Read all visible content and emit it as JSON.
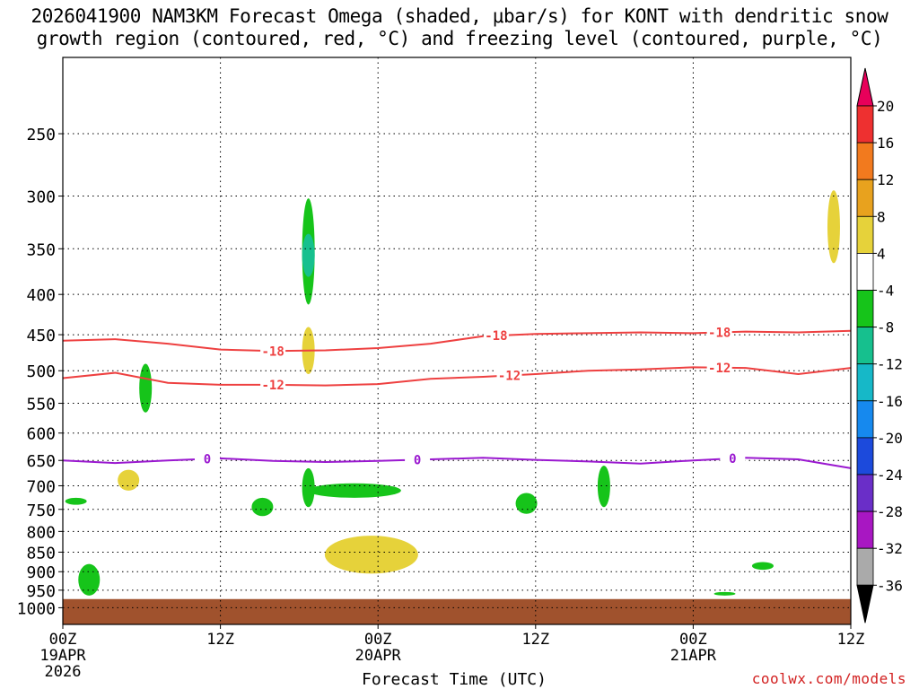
{
  "title_line1": "2026041900 NAM3KM Forecast Omega (shaded, μbar/s) for KONT with dendritic snow",
  "title_line2": "growth region (contoured, red, °C) and freezing level (contoured, purple, °C)",
  "credit": "coolwx.com/models",
  "chart_data": {
    "type": "contour",
    "xlabel": "Forecast Time (UTC)",
    "ylabel": "",
    "x_ticks": [
      {
        "hour": 0,
        "label": "00Z",
        "sub1": "19APR",
        "sub2": "2026"
      },
      {
        "hour": 12,
        "label": "12Z",
        "sub1": "",
        "sub2": ""
      },
      {
        "hour": 24,
        "label": "00Z",
        "sub1": "20APR",
        "sub2": ""
      },
      {
        "hour": 36,
        "label": "12Z",
        "sub1": "",
        "sub2": ""
      },
      {
        "hour": 48,
        "label": "00Z",
        "sub1": "21APR",
        "sub2": ""
      },
      {
        "hour": 60,
        "label": "12Z",
        "sub1": "",
        "sub2": ""
      }
    ],
    "xlim_hours": [
      0,
      60
    ],
    "y_log_pressure": true,
    "y_ticks": [
      250,
      300,
      350,
      400,
      450,
      500,
      550,
      600,
      650,
      700,
      750,
      800,
      850,
      900,
      950,
      1000
    ],
    "grid": true,
    "colorbar": {
      "levels": [
        20,
        16,
        12,
        8,
        4,
        -4,
        -8,
        -12,
        -16,
        -20,
        -24,
        -28,
        -32,
        -36
      ],
      "colors": [
        "#e8005a",
        "#ee3030",
        "#f27a1e",
        "#e8a21e",
        "#e6d23a",
        "#ffffff",
        "#16c41a",
        "#16c08e",
        "#16b8c8",
        "#1689ee",
        "#1c4adc",
        "#6a2ec8",
        "#a817c2",
        "#aaaaaa",
        "#000000"
      ]
    },
    "contours": [
      {
        "name": "-18",
        "color": "#ee4040",
        "x": [
          0,
          4,
          8,
          12,
          16,
          20,
          24,
          28,
          32,
          36,
          40,
          44,
          48,
          52,
          56,
          60
        ],
        "y": [
          458,
          456,
          462,
          470,
          472,
          471,
          468,
          462,
          452,
          449,
          448,
          447,
          448,
          446,
          447,
          445
        ],
        "label_hours": [
          16,
          33,
          50
        ]
      },
      {
        "name": "-12",
        "color": "#ee4040",
        "x": [
          0,
          4,
          8,
          12,
          16,
          20,
          24,
          28,
          32,
          36,
          40,
          44,
          48,
          52,
          56,
          60
        ],
        "y": [
          511,
          503,
          518,
          521,
          521,
          522,
          520,
          512,
          509,
          505,
          500,
          498,
          495,
          496,
          505,
          496
        ],
        "label_hours": [
          16,
          34,
          50
        ]
      },
      {
        "name": "0",
        "color": "#9a18d0",
        "x": [
          0,
          4,
          8,
          12,
          16,
          20,
          24,
          28,
          32,
          36,
          40,
          44,
          48,
          52,
          56,
          60
        ],
        "y": [
          650,
          655,
          650,
          646,
          651,
          653,
          651,
          648,
          645,
          649,
          652,
          656,
          650,
          645,
          648,
          665
        ],
        "label_hours": [
          11,
          27,
          51
        ]
      }
    ],
    "omega_regions": [
      {
        "level": -8,
        "hour_center": 18.7,
        "p_top": 302,
        "p_bottom": 412
      },
      {
        "level": -12,
        "hour_center": 18.7,
        "p_top": 335,
        "p_bottom": 380
      },
      {
        "level": -8,
        "hour_center": 6.3,
        "p_top": 490,
        "p_bottom": 565
      },
      {
        "level": -8,
        "hour_center": 1.0,
        "p_top": 725,
        "p_bottom": 740
      },
      {
        "level": -8,
        "hour_center": 15.2,
        "p_top": 725,
        "p_bottom": 765
      },
      {
        "level": -8,
        "hour_center": 18.7,
        "p_top": 665,
        "p_bottom": 745
      },
      {
        "level": -8,
        "hour_center": 22.2,
        "p_top": 695,
        "p_bottom": 725
      },
      {
        "level": -8,
        "hour_center": 35.3,
        "p_top": 715,
        "p_bottom": 760
      },
      {
        "level": -8,
        "hour_center": 41.2,
        "p_top": 660,
        "p_bottom": 745
      },
      {
        "level": -8,
        "hour_center": 2.0,
        "p_top": 880,
        "p_bottom": 965
      },
      {
        "level": -8,
        "hour_center": 53.3,
        "p_top": 875,
        "p_bottom": 895
      },
      {
        "level": -8,
        "hour_center": 50.4,
        "p_top": 955,
        "p_bottom": 965
      },
      {
        "level": 4,
        "hour_center": 18.7,
        "p_top": 440,
        "p_bottom": 505
      },
      {
        "level": 4,
        "hour_center": 5.0,
        "p_top": 668,
        "p_bottom": 710
      },
      {
        "level": 4,
        "hour_center": 23.5,
        "p_top": 810,
        "p_bottom": 905
      },
      {
        "level": 4,
        "hour_center": 58.7,
        "p_top": 295,
        "p_bottom": 365
      }
    ],
    "ground_p": 975
  }
}
